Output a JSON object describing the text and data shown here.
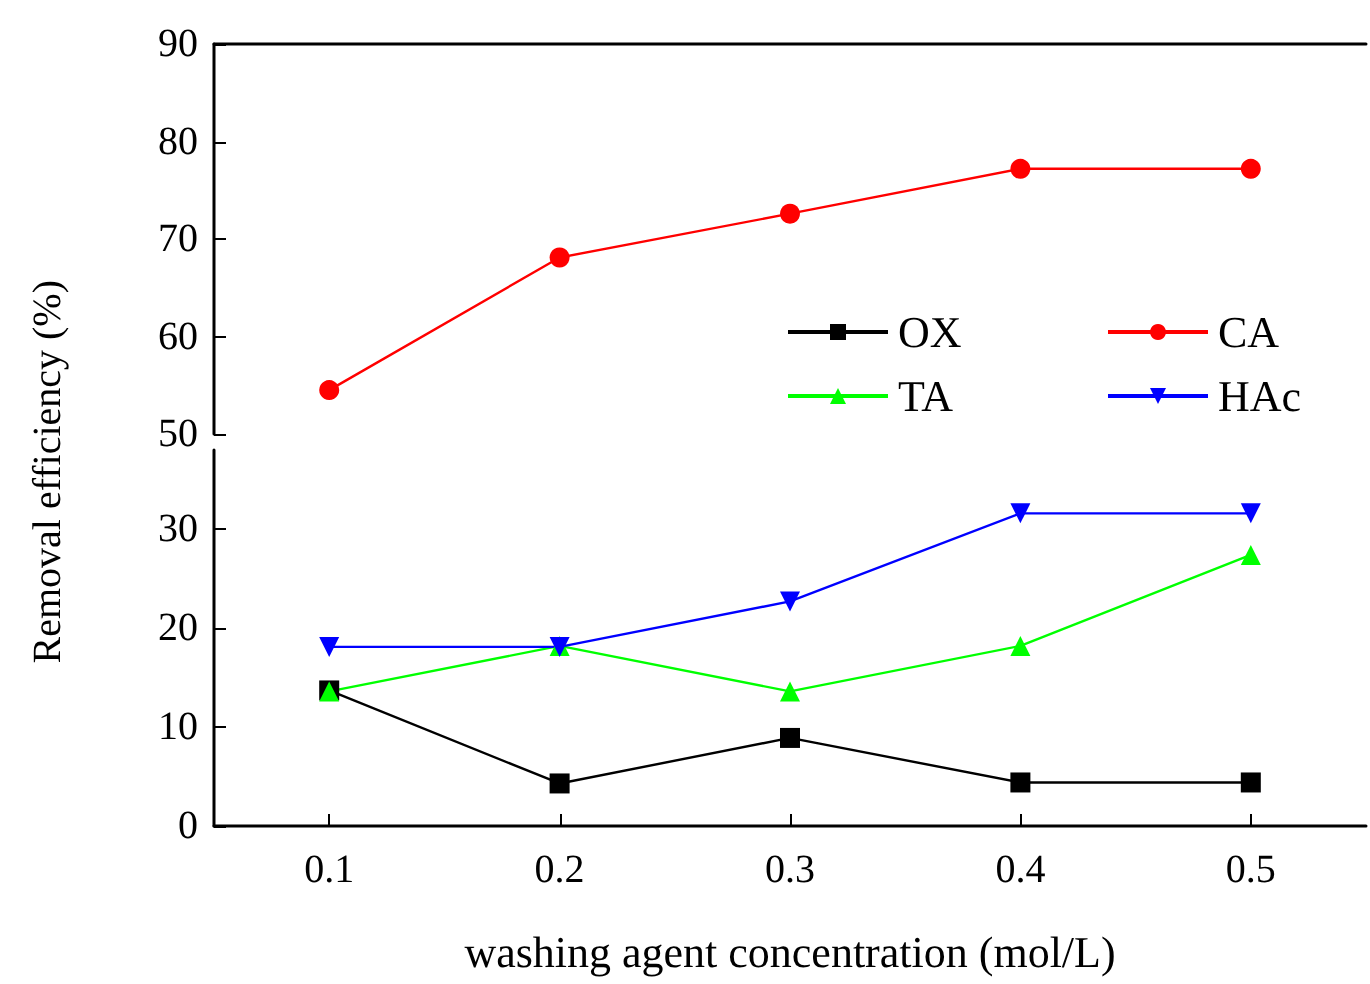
{
  "chart_data": [
    {
      "type": "line",
      "categories": [
        "0.1",
        "0.2",
        "0.3",
        "0.4",
        "0.5"
      ],
      "ylim": [
        50,
        90
      ],
      "yticks": [
        50,
        60,
        70,
        80,
        90
      ],
      "tick_labels": "y",
      "legend": "right",
      "series": [
        {
          "name": "CA",
          "color": "#ff0000",
          "marker": "circle",
          "values": [
            54.5,
            68.1,
            72.6,
            77.2,
            77.2
          ]
        }
      ]
    },
    {
      "type": "line",
      "categories": [
        "0.1",
        "0.2",
        "0.3",
        "0.4",
        "0.5"
      ],
      "ylim": [
        0,
        38
      ],
      "yticks": [
        0,
        10,
        20,
        30
      ],
      "xlabel": "washing agent concentration (mol/L)",
      "ylabel": "Removal efficiency (%)",
      "legend": "right",
      "series": [
        {
          "name": "OX",
          "color": "#000000",
          "marker": "square",
          "values": [
            13.7,
            4.3,
            8.9,
            4.4,
            4.4
          ]
        },
        {
          "name": "TA",
          "color": "#00ff00",
          "marker": "triangle",
          "values": [
            13.6,
            18.2,
            13.6,
            18.2,
            27.4
          ]
        },
        {
          "name": "HAc",
          "color": "#0000ff",
          "marker": "triangle-down",
          "values": [
            18.1,
            18.1,
            22.7,
            31.6,
            31.6
          ]
        }
      ]
    }
  ]
}
